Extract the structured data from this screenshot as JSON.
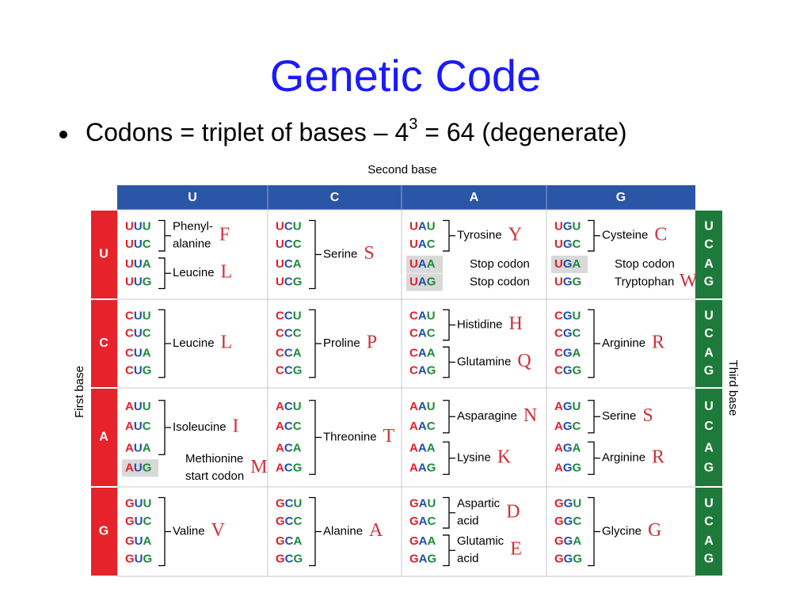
{
  "title": "Genetic Code",
  "bullet": {
    "before": "Codons = triplet of bases – 4",
    "superscript": "3",
    "after": " = 64  (degenerate)"
  },
  "table": {
    "second_base_label": "Second base",
    "first_base_label": "First base",
    "third_base_label": "Third base",
    "columns": [
      "U",
      "C",
      "A",
      "G"
    ],
    "rows": [
      {
        "first_base": "U",
        "third_bases": [
          "U",
          "C",
          "A",
          "G"
        ],
        "cells": [
          [
            {
              "codons": [
                "UUU",
                "UUC"
              ],
              "label": [
                "Phenyl-",
                "alanine"
              ],
              "letter": "F"
            },
            {
              "codons": [
                "UUA",
                "UUG"
              ],
              "label": [
                "Leucine"
              ],
              "letter": "L"
            }
          ],
          [
            {
              "codons": [
                "UCU",
                "UCC",
                "UCA",
                "UCG"
              ],
              "label": [
                "Serine"
              ],
              "letter": "S"
            }
          ],
          [
            {
              "codons": [
                "UAU",
                "UAC"
              ],
              "label": [
                "Tyrosine"
              ],
              "letter": "Y"
            },
            {
              "codons": [
                "UAA"
              ],
              "label": [
                "Stop codon"
              ],
              "shaded": true
            },
            {
              "codons": [
                "UAG"
              ],
              "label": [
                "Stop codon"
              ],
              "shaded": true
            }
          ],
          [
            {
              "codons": [
                "UGU",
                "UGC"
              ],
              "label": [
                "Cysteine"
              ],
              "letter": "C"
            },
            {
              "codons": [
                "UGA"
              ],
              "label": [
                "Stop codon"
              ],
              "shaded": true
            },
            {
              "codons": [
                "UGG"
              ],
              "label": [
                "Tryptophan"
              ],
              "letter": "W"
            }
          ]
        ]
      },
      {
        "first_base": "C",
        "third_bases": [
          "U",
          "C",
          "A",
          "G"
        ],
        "cells": [
          [
            {
              "codons": [
                "CUU",
                "CUC",
                "CUA",
                "CUG"
              ],
              "label": [
                "Leucine"
              ],
              "letter": "L"
            }
          ],
          [
            {
              "codons": [
                "CCU",
                "CCC",
                "CCA",
                "CCG"
              ],
              "label": [
                "Proline"
              ],
              "letter": "P"
            }
          ],
          [
            {
              "codons": [
                "CAU",
                "CAC"
              ],
              "label": [
                "Histidine"
              ],
              "letter": "H"
            },
            {
              "codons": [
                "CAA",
                "CAG"
              ],
              "label": [
                "Glutamine"
              ],
              "letter": "Q"
            }
          ],
          [
            {
              "codons": [
                "CGU",
                "CGC",
                "CGA",
                "CGG"
              ],
              "label": [
                "Arginine"
              ],
              "letter": "R"
            }
          ]
        ]
      },
      {
        "first_base": "A",
        "third_bases": [
          "U",
          "C",
          "A",
          "G"
        ],
        "cells": [
          [
            {
              "codons": [
                "AUU",
                "AUC",
                "AUA"
              ],
              "label": [
                "Isoleucine"
              ],
              "letter": "I"
            },
            {
              "codons": [
                "AUG"
              ],
              "label": [
                "Methionine",
                "start codon"
              ],
              "letter": "M",
              "shaded": true
            }
          ],
          [
            {
              "codons": [
                "ACU",
                "ACC",
                "ACA",
                "ACG"
              ],
              "label": [
                "Threonine"
              ],
              "letter": "T"
            }
          ],
          [
            {
              "codons": [
                "AAU",
                "AAC"
              ],
              "label": [
                "Asparagine"
              ],
              "letter": "N"
            },
            {
              "codons": [
                "AAA",
                "AAG"
              ],
              "label": [
                "Lysine"
              ],
              "letter": "K"
            }
          ],
          [
            {
              "codons": [
                "AGU",
                "AGC"
              ],
              "label": [
                "Serine"
              ],
              "letter": "S"
            },
            {
              "codons": [
                "AGA",
                "AGG"
              ],
              "label": [
                "Arginine"
              ],
              "letter": "R"
            }
          ]
        ]
      },
      {
        "first_base": "G",
        "third_bases": [
          "U",
          "C",
          "A",
          "G"
        ],
        "cells": [
          [
            {
              "codons": [
                "GUU",
                "GUC",
                "GUA",
                "GUG"
              ],
              "label": [
                "Valine"
              ],
              "letter": "V"
            }
          ],
          [
            {
              "codons": [
                "GCU",
                "GCC",
                "GCA",
                "GCG"
              ],
              "label": [
                "Alanine"
              ],
              "letter": "A"
            }
          ],
          [
            {
              "codons": [
                "GAU",
                "GAC"
              ],
              "label": [
                "Aspartic",
                "acid"
              ],
              "letter": "D"
            },
            {
              "codons": [
                "GAA",
                "GAG"
              ],
              "label": [
                "Glutamic",
                "acid"
              ],
              "letter": "E"
            }
          ],
          [
            {
              "codons": [
                "GGU",
                "GGC",
                "GGA",
                "GGG"
              ],
              "label": [
                "Glycine"
              ],
              "letter": "G"
            }
          ]
        ]
      }
    ]
  }
}
